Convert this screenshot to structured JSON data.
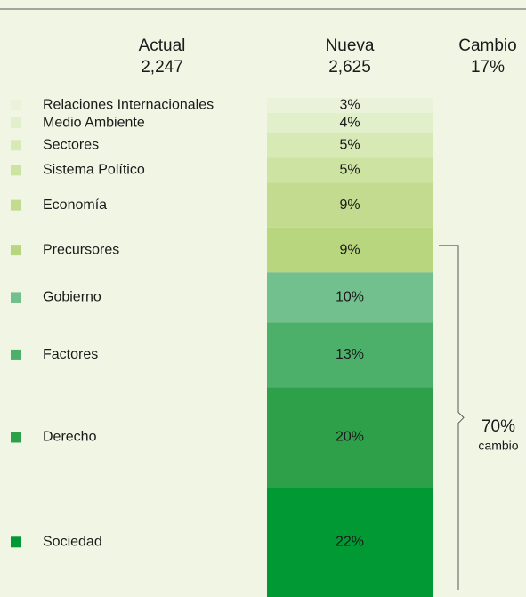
{
  "chart_data": {
    "type": "stacked_column",
    "headers": [
      {
        "title": "Actual",
        "label": "2,247"
      },
      {
        "title": "Nueva",
        "label": "2,625"
      },
      {
        "title": "Cambio",
        "label": "17%"
      }
    ],
    "categories": [
      "Relaciones Internacionales",
      "Medio Ambiente",
      "Sectores",
      "Sistema Político",
      "Economía",
      "Precursores",
      "Gobierno",
      "Factores",
      "Derecho",
      "Sociedad"
    ],
    "values": [
      3,
      4,
      5,
      5,
      9,
      9,
      10,
      13,
      20,
      22
    ],
    "value_labels": [
      "3%",
      "4%",
      "5%",
      "5%",
      "9%",
      "9%",
      "10%",
      "13%",
      "20%",
      "22%"
    ],
    "colors": [
      "#eaf3da",
      "#e2efcb",
      "#d7e9b5",
      "#cde3a2",
      "#c2db8e",
      "#b8d67d",
      "#72c08e",
      "#4db06a",
      "#2ea04a",
      "#009933"
    ],
    "ylim": [
      0,
      100
    ],
    "bracket": {
      "value_label": "70%",
      "label": "cambio"
    }
  }
}
